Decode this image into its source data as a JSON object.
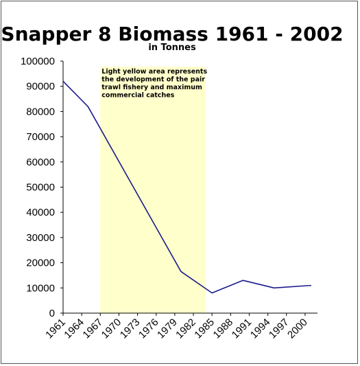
{
  "chart_data": {
    "type": "line",
    "title": "Snapper 8 Biomass 1961 - 2002",
    "subtitle": "in Tonnes",
    "xlabel": "",
    "ylabel": "",
    "xlim": [
      1961,
      2002
    ],
    "ylim": [
      0,
      100000
    ],
    "x_ticks": [
      1961,
      1964,
      1967,
      1970,
      1973,
      1976,
      1979,
      1982,
      1985,
      1988,
      1991,
      1994,
      1997,
      2000
    ],
    "y_ticks": [
      0,
      10000,
      20000,
      30000,
      40000,
      50000,
      60000,
      70000,
      80000,
      90000,
      100000
    ],
    "grid": false,
    "legend": "none",
    "series": [
      {
        "x": [
          1961,
          1965,
          1980,
          1985,
          1990,
          1995,
          2001
        ],
        "y": [
          92000,
          82000,
          16500,
          8000,
          13000,
          10000,
          11000
        ]
      }
    ],
    "highlight_band": {
      "x_start": 1967,
      "x_end": 1984,
      "color": "#ffffcc",
      "annotation_lines": [
        "Light yellow area represents",
        "the development of the pair",
        "trawl fishery and maximum",
        "commercial catches"
      ]
    },
    "line_color": "#1a1a8c"
  }
}
